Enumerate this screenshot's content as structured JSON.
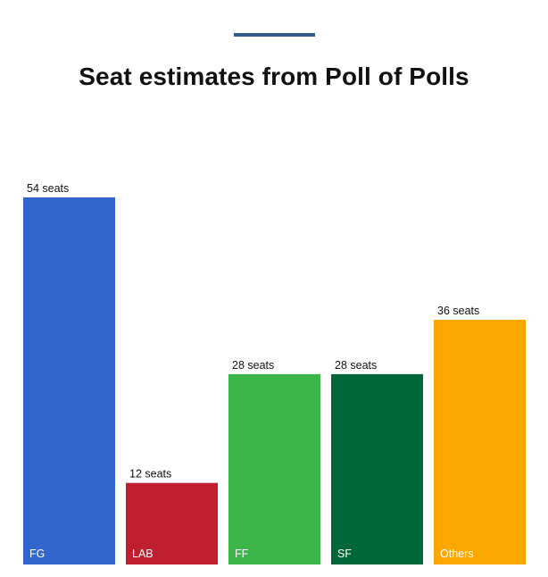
{
  "chart_data": {
    "type": "bar",
    "title": "Seat estimates from Poll of Polls",
    "xlabel": "",
    "ylabel": "",
    "categories": [
      "FG",
      "LAB",
      "FF",
      "SF",
      "Others"
    ],
    "values": [
      54,
      12,
      28,
      28,
      36
    ],
    "value_labels": [
      "54 seats",
      "12 seats",
      "28 seats",
      "28 seats",
      "36 seats"
    ],
    "ylim": [
      0,
      54
    ],
    "grid": false,
    "legend": "none",
    "colors": [
      "#3366cc",
      "#be1e2d",
      "#3cb54a",
      "#006838",
      "#fba700"
    ]
  },
  "accent_color": "#2f5a8a"
}
